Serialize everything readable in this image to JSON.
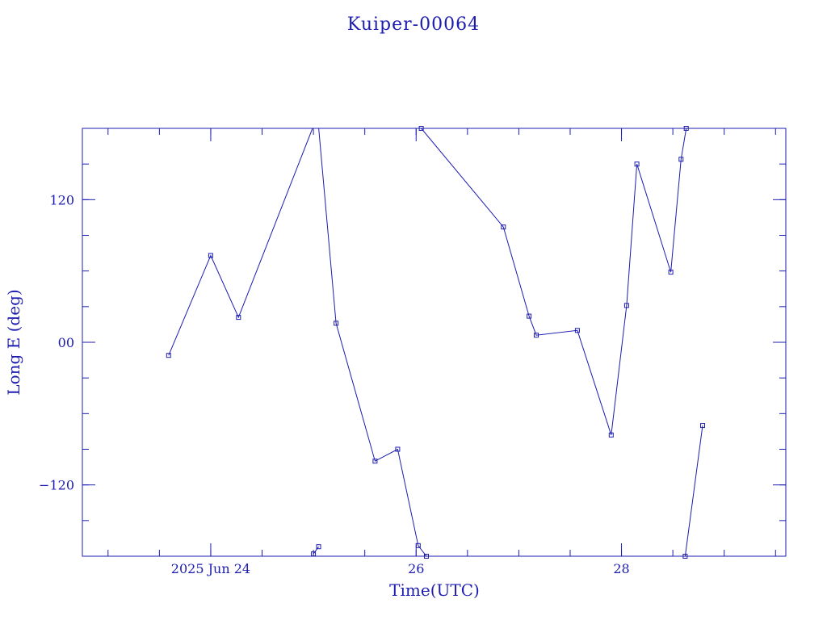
{
  "colors": {
    "ink": "#1c1cb0",
    "line": "#1c1cb0",
    "background": "#ffffff"
  },
  "chart_data": {
    "type": "line",
    "title": "Kuiper-00064",
    "xlabel": "Time(UTC)",
    "ylabel": "Long E (deg)",
    "x_unit": "days (2025 Jun)",
    "xlim": [
      22.75,
      29.6
    ],
    "ylim": [
      -180,
      180
    ],
    "x_ticks": [
      {
        "value": 24,
        "label": "2025 Jun 24"
      },
      {
        "value": 26,
        "label": "26"
      },
      {
        "value": 28,
        "label": "28"
      }
    ],
    "y_ticks": [
      {
        "value": 120,
        "label": "120"
      },
      {
        "value": 0,
        "label": "00"
      },
      {
        "value": -120,
        "label": "−120"
      }
    ],
    "grid": false,
    "legend": "none",
    "series": [
      {
        "points": [
          [
            23.59,
            -11
          ],
          [
            24.0,
            73
          ],
          [
            24.27,
            21
          ],
          [
            25.0,
            182
          ]
        ]
      },
      {
        "points": [
          [
            25.0,
            -178
          ],
          [
            25.05,
            -172
          ]
        ]
      },
      {
        "points": [
          [
            25.05,
            181
          ],
          [
            25.22,
            16
          ],
          [
            25.6,
            -100
          ],
          [
            25.82,
            -90
          ],
          [
            26.02,
            -171
          ],
          [
            26.1,
            -180
          ]
        ]
      },
      {
        "points": [
          [
            26.05,
            180
          ],
          [
            26.85,
            97
          ],
          [
            27.1,
            22
          ],
          [
            27.17,
            6
          ],
          [
            27.57,
            10
          ],
          [
            27.9,
            -78
          ],
          [
            28.05,
            31
          ],
          [
            28.15,
            150
          ],
          [
            28.48,
            59
          ],
          [
            28.58,
            154
          ],
          [
            28.63,
            180
          ]
        ]
      },
      {
        "points": [
          [
            28.62,
            -180
          ],
          [
            28.79,
            -70
          ]
        ]
      }
    ]
  }
}
